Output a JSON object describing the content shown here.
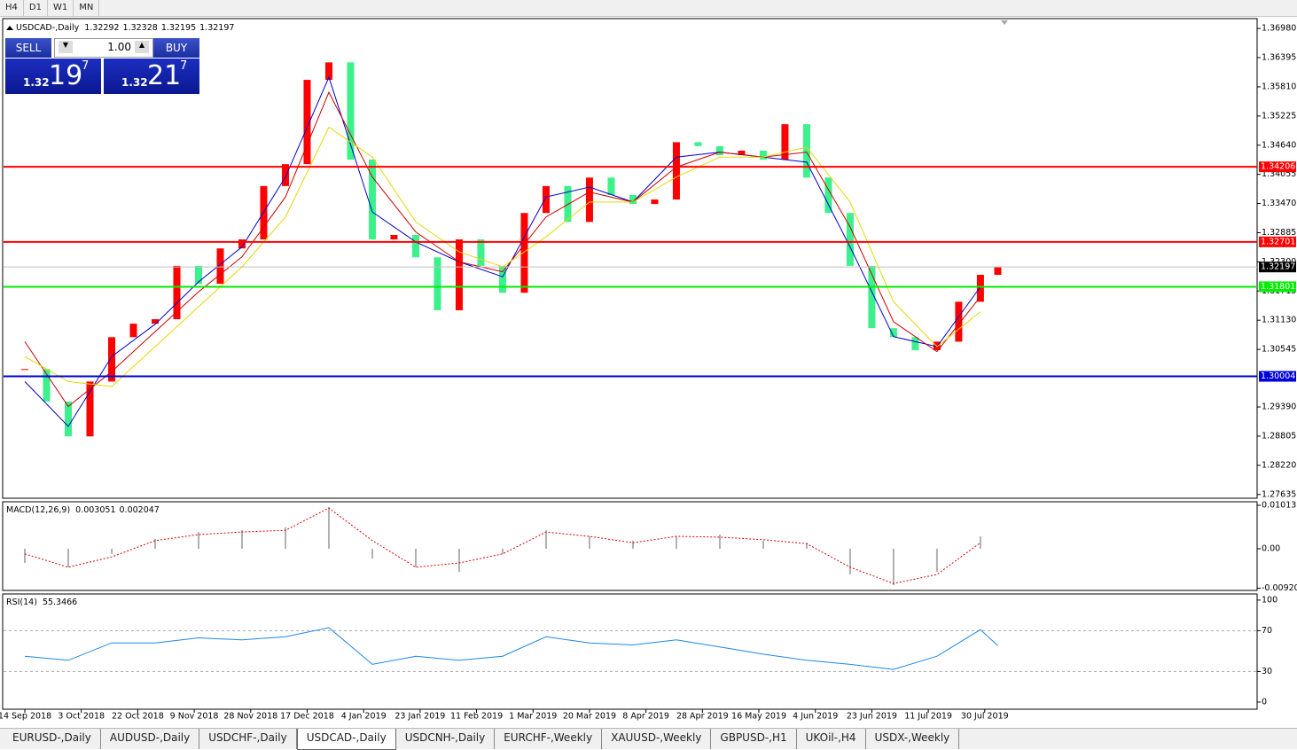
{
  "toolbar": [
    "H4",
    "D1",
    "W1",
    "MN"
  ],
  "trade_panel": {
    "sell": {
      "label": "SELL",
      "price_big": "1.32",
      "price_pips": "19",
      "price_frac": "7"
    },
    "lot": "1.00",
    "buy": {
      "label": "BUY",
      "price_big": "1.32",
      "price_pips": "21",
      "price_frac": "7"
    }
  },
  "chart_data": [
    {
      "type": "candlestick",
      "title": "USDCAD-,Daily",
      "title_values": [
        1.32292,
        1.32328,
        1.32195,
        1.32197
      ],
      "x": [
        0,
        5,
        10,
        15,
        20,
        25,
        30,
        35,
        40,
        45,
        50,
        55,
        60,
        65,
        70,
        75,
        80,
        85,
        90,
        95,
        100,
        105,
        110,
        115,
        120,
        125,
        130,
        135,
        140,
        145,
        150,
        155,
        160,
        165,
        170,
        175,
        180,
        185,
        190,
        195,
        200,
        205,
        210,
        215,
        220,
        224
      ],
      "close": [
        1.3015,
        1.295,
        1.288,
        1.299,
        1.3079,
        1.3106,
        1.3115,
        1.3222,
        1.3186,
        1.3257,
        1.3275,
        1.3382,
        1.3426,
        1.3595,
        1.363,
        1.3435,
        1.3275,
        1.3284,
        1.3239,
        1.3133,
        1.3275,
        1.3222,
        1.3168,
        1.3328,
        1.3382,
        1.331,
        1.3399,
        1.3364,
        1.3346,
        1.3355,
        1.347,
        1.3462,
        1.3444,
        1.3453,
        1.3435,
        1.3506,
        1.3399,
        1.3328,
        1.3222,
        1.3097,
        1.3079,
        1.3053,
        1.307,
        1.315,
        1.3204,
        1.32197
      ],
      "up_color": "#ff0000",
      "down_color": "#3cf08c",
      "series": [
        {
          "color": "#0000cc",
          "x": [
            0,
            10,
            20,
            30,
            40,
            50,
            60,
            70,
            80,
            90,
            100,
            110,
            120,
            130,
            140,
            150,
            160,
            170,
            180,
            190,
            200,
            210,
            220
          ],
          "values": [
            1.299,
            1.29,
            1.304,
            1.3105,
            1.319,
            1.326,
            1.34,
            1.36,
            1.333,
            1.327,
            1.323,
            1.32,
            1.336,
            1.338,
            1.335,
            1.344,
            1.345,
            1.344,
            1.343,
            1.326,
            1.308,
            1.306,
            1.318
          ]
        },
        {
          "color": "#cc0000",
          "x": [
            0,
            10,
            20,
            30,
            40,
            50,
            60,
            70,
            80,
            90,
            100,
            110,
            120,
            130,
            140,
            150,
            160,
            170,
            180,
            190,
            200,
            210,
            220
          ],
          "values": [
            1.307,
            1.294,
            1.301,
            1.309,
            1.317,
            1.324,
            1.336,
            1.357,
            1.34,
            1.329,
            1.323,
            1.321,
            1.332,
            1.337,
            1.335,
            1.342,
            1.345,
            1.344,
            1.345,
            1.33,
            1.311,
            1.305,
            1.316
          ]
        },
        {
          "color": "#e6d800",
          "x": [
            0,
            10,
            20,
            30,
            40,
            50,
            60,
            70,
            80,
            90,
            100,
            110,
            120,
            130,
            140,
            150,
            160,
            170,
            180,
            190,
            200,
            210,
            220
          ],
          "values": [
            1.304,
            1.299,
            1.298,
            1.306,
            1.314,
            1.322,
            1.332,
            1.35,
            1.344,
            1.331,
            1.325,
            1.322,
            1.328,
            1.335,
            1.335,
            1.34,
            1.344,
            1.344,
            1.346,
            1.335,
            1.315,
            1.306,
            1.313
          ]
        }
      ],
      "levels": [
        {
          "value": 1.34206,
          "color": "#ff0000"
        },
        {
          "value": 1.32701,
          "color": "#ff0000"
        },
        {
          "value": 1.31801,
          "color": "#00ee00"
        },
        {
          "value": 1.30004,
          "color": "#0000dd"
        }
      ],
      "bid": 1.32197,
      "xlim": [
        -4.9,
        283.7
      ],
      "ylim": [
        1.2756,
        1.3716
      ],
      "yticks": [
        {
          "value": 1.3698,
          "label": "1.36980"
        },
        1.36395,
        {
          "value": 1.3581,
          "label": "1.35810"
        },
        1.35225,
        {
          "value": 1.3464,
          "label": "1.34640"
        },
        1.34055,
        {
          "value": 1.3347,
          "label": "1.33470"
        },
        1.32885,
        {
          "value": 1.323,
          "label": "1.32300"
        },
        1.31715,
        {
          "value": 1.3113,
          "label": "1.31130"
        },
        1.30545,
        {
          "value": 1.2939,
          "label": "1.29390"
        },
        1.28805,
        {
          "value": 1.2822,
          "label": "1.28220"
        },
        1.27635
      ]
    },
    {
      "type": "macd",
      "title": "MACD(12,26,9)",
      "title_values": [
        0.003051,
        0.002047
      ],
      "x": [
        0,
        10,
        20,
        30,
        40,
        50,
        60,
        70,
        80,
        90,
        100,
        110,
        120,
        130,
        140,
        150,
        160,
        170,
        180,
        190,
        200,
        210,
        220
      ],
      "series": [
        {
          "style": "histogram",
          "color": "#b0b0b0",
          "values": [
            -0.0033,
            -0.0043,
            -0.0012,
            0.0023,
            0.0039,
            0.0043,
            0.005,
            0.0097,
            -0.0023,
            -0.0043,
            -0.0054,
            -0.0012,
            0.0043,
            0.0029,
            0.0019,
            0.0029,
            0.0033,
            0.0019,
            0.0014,
            -0.006,
            -0.0085,
            -0.0054,
            0.0029
          ]
        },
        {
          "style": "dotted",
          "color": "#dd0000",
          "values": [
            -0.0012,
            -0.0043,
            -0.0019,
            0.0019,
            0.0033,
            0.0039,
            0.0043,
            0.0095,
            0.0019,
            -0.0043,
            -0.0033,
            -0.0012,
            0.0039,
            0.0029,
            0.0014,
            0.0029,
            0.0027,
            0.0021,
            0.0012,
            -0.0043,
            -0.0081,
            -0.006,
            0.0014
          ]
        }
      ],
      "xlim": [
        -4.9,
        283.7
      ],
      "ylim": [
        -0.00972,
        0.01096
      ],
      "yticks": [
        0.010131,
        {
          "value": 0,
          "label": "0.00"
        },
        -0.009203
      ]
    },
    {
      "type": "line",
      "title": "RSI(14)",
      "title_values": [
        55.3466
      ],
      "x": [
        0,
        10,
        20,
        30,
        40,
        50,
        60,
        70,
        80,
        90,
        100,
        110,
        120,
        130,
        140,
        150,
        160,
        170,
        180,
        190,
        200,
        210,
        220,
        224
      ],
      "series": [
        {
          "color": "#1e88e5",
          "values": [
            45,
            41,
            58,
            58,
            63,
            61,
            64,
            73,
            37,
            45,
            41,
            45,
            64,
            58,
            56,
            61,
            54,
            47,
            41,
            37,
            32,
            45,
            71,
            55.3466
          ]
        }
      ],
      "levels": [
        70,
        30
      ],
      "xlim": [
        -4.9,
        283.7
      ],
      "ylim": [
        -7,
        106
      ],
      "yticks": [
        100,
        70,
        30,
        0
      ],
      "xticks": [
        {
          "value": 0,
          "label": "14 Sep 2018"
        },
        {
          "value": 13,
          "label": "3 Oct 2018"
        },
        {
          "value": 26,
          "label": "22 Oct 2018"
        },
        {
          "value": 39,
          "label": "9 Nov 2018"
        },
        {
          "value": 52,
          "label": "28 Nov 2018"
        },
        {
          "value": 65,
          "label": "17 Dec 2018"
        },
        {
          "value": 78,
          "label": "4 Jan 2019"
        },
        {
          "value": 91,
          "label": "23 Jan 2019"
        },
        {
          "value": 104,
          "label": "11 Feb 2019"
        },
        {
          "value": 117,
          "label": "1 Mar 2019"
        },
        {
          "value": 130,
          "label": "20 Mar 2019"
        },
        {
          "value": 143,
          "label": "8 Apr 2019"
        },
        {
          "value": 156,
          "label": "28 Apr 2019"
        },
        {
          "value": 169,
          "label": "16 May 2019"
        },
        {
          "value": 182,
          "label": "4 Jun 2019"
        },
        {
          "value": 195,
          "label": "23 Jun 2019"
        },
        {
          "value": 208,
          "label": "11 Jul 2019"
        },
        {
          "value": 221,
          "label": "30 Jul 2019"
        }
      ]
    }
  ],
  "tabs": [
    "EURUSD-,Daily",
    "AUDUSD-,Daily",
    "USDCHF-,Daily",
    "USDCAD-,Daily",
    "USDCNH-,Daily",
    "EURCHF-,Weekly",
    "XAUUSD-,Weekly",
    "GBPUSD-,H1",
    "UKOil-,H4",
    "USDX-,Weekly"
  ],
  "active_tab": 3
}
